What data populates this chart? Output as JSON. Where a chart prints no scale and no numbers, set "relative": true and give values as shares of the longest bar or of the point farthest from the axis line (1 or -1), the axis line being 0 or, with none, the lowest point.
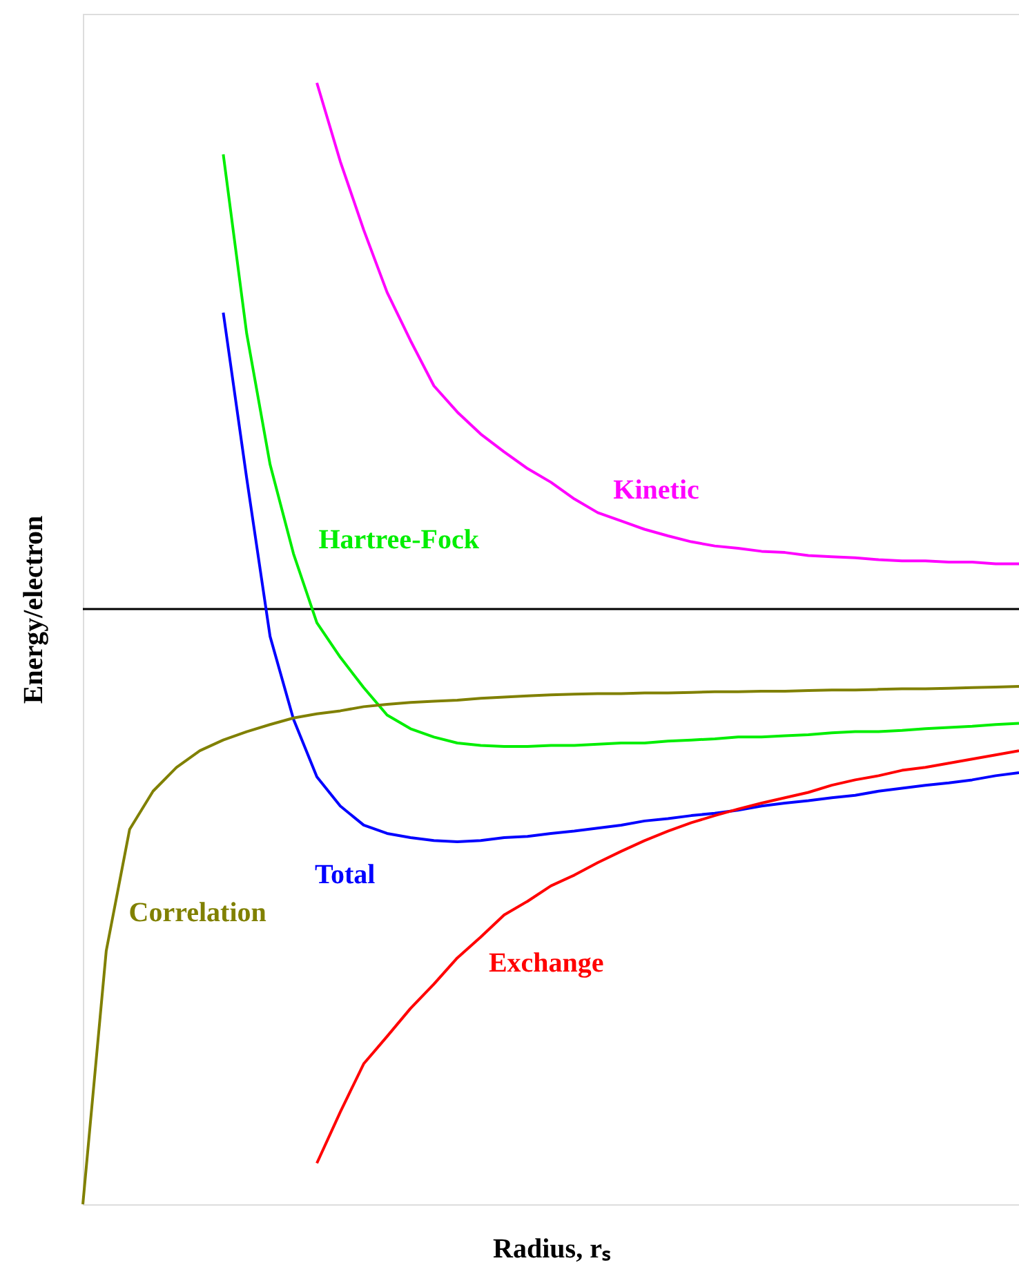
{
  "chart_data": {
    "type": "line",
    "relative": true,
    "legend": false,
    "xlabel": "Radius,  rₛ",
    "ylabel": "Energy/electron",
    "categories": [
      null,
      null,
      null,
      null,
      null,
      null,
      null,
      null,
      null,
      null,
      null,
      null,
      null,
      null,
      null,
      null,
      null,
      null,
      null,
      null,
      null,
      null,
      null,
      null,
      null,
      null,
      null,
      null,
      null,
      null,
      null,
      null,
      null,
      null,
      null,
      null,
      null,
      null,
      null,
      null,
      null
    ],
    "series": [
      {
        "name": "Kinetic",
        "color": "#ff00ff",
        "values": [
          null,
          null,
          null,
          null,
          null,
          null,
          null,
          null,
          null,
          null,
          0.884,
          0.752,
          0.637,
          0.532,
          0.451,
          0.375,
          0.331,
          0.294,
          0.264,
          0.236,
          0.213,
          0.185,
          0.162,
          0.148,
          0.134,
          0.123,
          0.113,
          0.106,
          0.102,
          0.097,
          0.095,
          0.09,
          0.088,
          0.086,
          0.083,
          0.081,
          0.081,
          0.079,
          0.079,
          0.076,
          0.076
        ]
      },
      {
        "name": "Hartree-Fock",
        "color": "#00ee00",
        "values": [
          null,
          null,
          null,
          null,
          null,
          null,
          0.764,
          0.463,
          0.243,
          0.093,
          -0.023,
          -0.081,
          -0.132,
          -0.178,
          -0.201,
          -0.215,
          -0.225,
          -0.229,
          -0.231,
          -0.231,
          -0.229,
          -0.229,
          -0.227,
          -0.225,
          -0.225,
          -0.222,
          -0.22,
          -0.218,
          -0.215,
          -0.215,
          -0.213,
          -0.211,
          -0.208,
          -0.206,
          -0.206,
          -0.204,
          -0.201,
          -0.199,
          -0.197,
          -0.194,
          -0.192
        ]
      },
      {
        "name": "Total",
        "color": "#0000ff",
        "values": [
          null,
          null,
          null,
          null,
          null,
          null,
          0.498,
          0.22,
          -0.046,
          -0.185,
          -0.282,
          -0.331,
          -0.363,
          -0.377,
          -0.384,
          -0.389,
          -0.391,
          -0.389,
          -0.384,
          -0.382,
          -0.377,
          -0.373,
          -0.368,
          -0.363,
          -0.356,
          -0.352,
          -0.347,
          -0.343,
          -0.338,
          -0.331,
          -0.326,
          -0.322,
          -0.317,
          -0.313,
          -0.306,
          -0.301,
          -0.296,
          -0.292,
          -0.287,
          -0.28,
          -0.275
        ]
      },
      {
        "name": "Correlation",
        "color": "#808000",
        "values": [
          -1.0,
          -0.574,
          -0.37,
          -0.306,
          -0.266,
          -0.238,
          -0.22,
          -0.206,
          -0.194,
          -0.183,
          -0.176,
          -0.171,
          -0.164,
          -0.16,
          -0.157,
          -0.155,
          -0.153,
          -0.15,
          -0.148,
          -0.146,
          -0.144,
          -0.143,
          -0.142,
          -0.142,
          -0.141,
          -0.141,
          -0.14,
          -0.139,
          -0.139,
          -0.138,
          -0.138,
          -0.137,
          -0.136,
          -0.136,
          -0.135,
          -0.134,
          -0.134,
          -0.133,
          -0.132,
          -0.131,
          -0.13
        ]
      },
      {
        "name": "Exchange",
        "color": "#ff0000",
        "values": [
          null,
          null,
          null,
          null,
          null,
          null,
          null,
          null,
          null,
          null,
          -0.931,
          -0.845,
          -0.764,
          -0.718,
          -0.671,
          -0.63,
          -0.586,
          -0.551,
          -0.514,
          -0.491,
          -0.465,
          -0.447,
          -0.426,
          -0.407,
          -0.389,
          -0.373,
          -0.359,
          -0.347,
          -0.336,
          -0.326,
          -0.317,
          -0.308,
          -0.296,
          -0.287,
          -0.28,
          -0.271,
          -0.266,
          -0.259,
          -0.252,
          -0.245,
          -0.238
        ]
      }
    ]
  }
}
